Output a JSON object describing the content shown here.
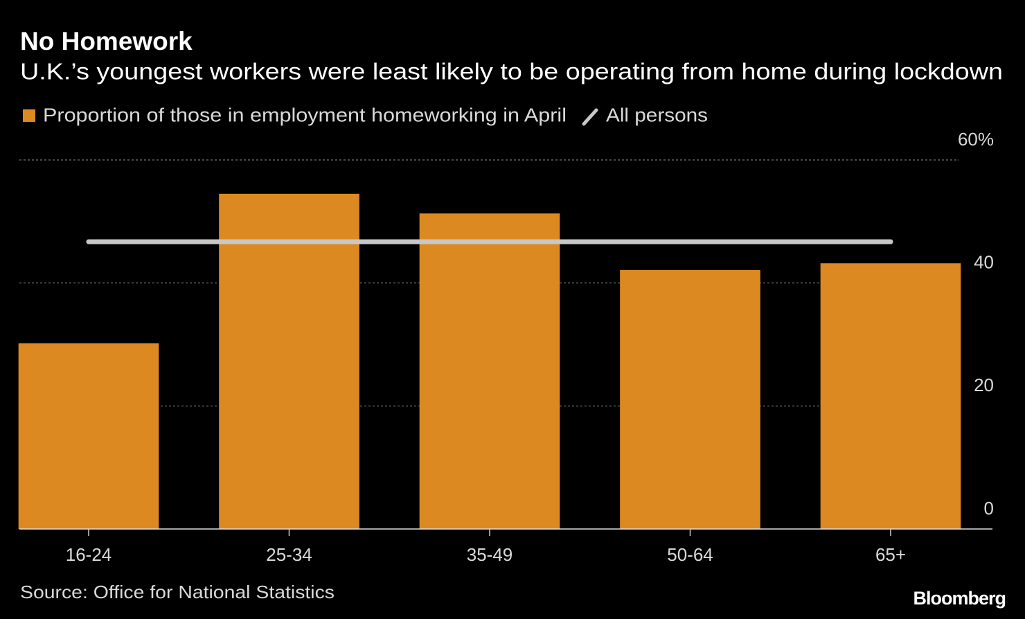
{
  "chart_data": {
    "type": "bar",
    "title": "No Homework",
    "subtitle": "U.K.’s youngest workers were least likely to be operating from home during lockdown",
    "categories": [
      "16-24",
      "25-34",
      "35-49",
      "50-64",
      "65+"
    ],
    "series": [
      {
        "name": "Proportion of those in employment homeworking in April",
        "color": "#dc8921",
        "values": [
          30.2,
          54.5,
          51.3,
          42.1,
          43.2
        ]
      }
    ],
    "reference_line": {
      "name": "All persons",
      "value": 46.7,
      "color": "#c8c8c8"
    },
    "ylim": [
      0,
      60
    ],
    "yticks": [
      0,
      20,
      40,
      {
        "value": 60,
        "label": "60%"
      }
    ],
    "grid": true,
    "source": "Source: Office for National Statistics",
    "brand": "Bloomberg"
  }
}
